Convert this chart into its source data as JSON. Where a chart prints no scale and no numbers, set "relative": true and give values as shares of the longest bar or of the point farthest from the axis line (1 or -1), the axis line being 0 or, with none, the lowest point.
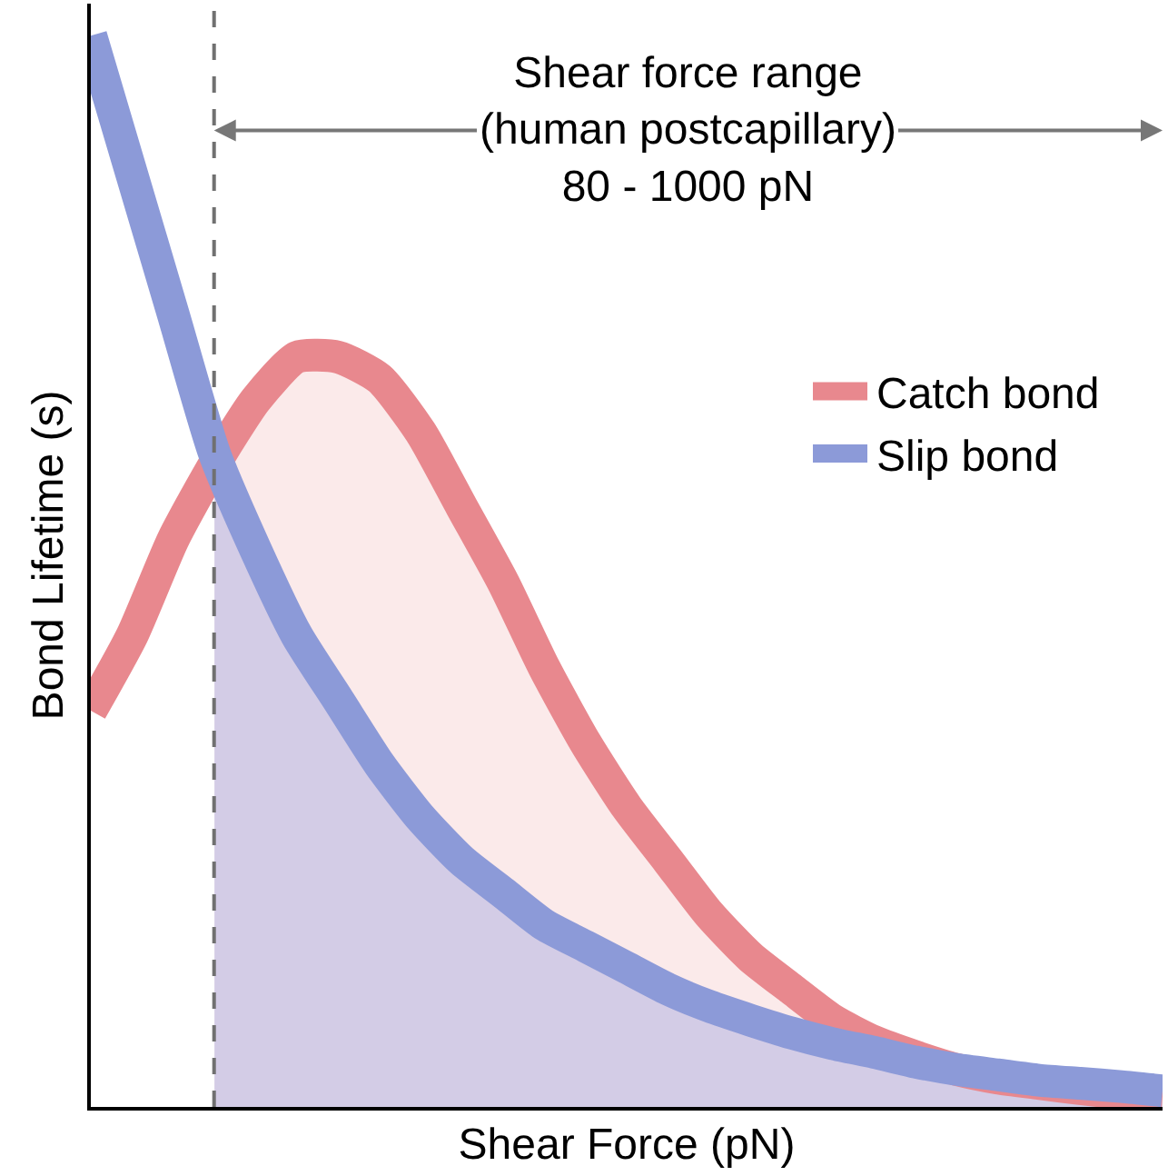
{
  "chart_data": {
    "type": "line",
    "relative": true,
    "xlabel": "Shear Force (pN)",
    "ylabel": "Bond Lifetime (s)",
    "categories": [
      null,
      null,
      null,
      null,
      null,
      null,
      null,
      null,
      null,
      null,
      null,
      null,
      null,
      null,
      null,
      null,
      null,
      null,
      null,
      null,
      null,
      null,
      null,
      null,
      null,
      null,
      null
    ],
    "series": [
      {
        "type": "area",
        "color": "#fbeaea",
        "values": [
          null,
          null,
          null,
          0.6,
          0.66,
          0.7,
          0.7,
          0.68,
          0.63,
          0.56,
          0.49,
          0.41,
          0.34,
          0.28,
          0.23,
          0.18,
          0.14,
          0.11,
          0.081,
          0.061,
          0.047,
          0.035,
          null,
          null,
          null,
          null,
          null
        ]
      },
      {
        "type": "area",
        "color": "#d3cce6",
        "values": [
          null,
          null,
          null,
          0.61,
          0.52,
          0.44,
          0.38,
          0.32,
          0.27,
          0.23,
          0.2,
          0.17,
          0.15,
          0.13,
          0.11,
          0.094,
          0.081,
          0.069,
          0.059,
          0.051,
          0.042,
          0.035,
          0.03,
          0.025,
          0.022,
          0.019,
          0.015
        ]
      },
      {
        "name": "Catch bond",
        "color": "#e8888e",
        "values": [
          0.37,
          0.44,
          0.53,
          0.6,
          0.66,
          0.7,
          0.7,
          0.68,
          0.63,
          0.56,
          0.49,
          0.41,
          0.34,
          0.28,
          0.23,
          0.18,
          0.14,
          0.11,
          0.081,
          0.061,
          0.047,
          0.035,
          0.027,
          0.022,
          0.017,
          0.013,
          0.01
        ]
      },
      {
        "name": "Slip bond",
        "color": "#8c9ad8",
        "values": [
          1.0,
          0.87,
          0.74,
          0.61,
          0.52,
          0.44,
          0.38,
          0.32,
          0.27,
          0.23,
          0.2,
          0.17,
          0.15,
          0.13,
          0.11,
          0.094,
          0.081,
          0.069,
          0.059,
          0.051,
          0.042,
          0.035,
          0.03,
          0.025,
          0.022,
          0.019,
          0.015
        ]
      }
    ],
    "annotations": [
      "Shear force range\n(human postcapillary)\n80 - 1000 pN"
    ],
    "legend": "right"
  }
}
